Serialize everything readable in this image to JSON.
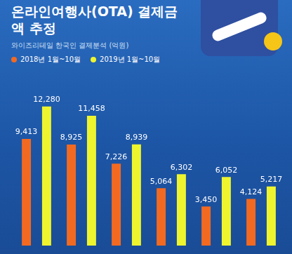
{
  "chart_data": {
    "type": "bar",
    "title": "온라인여행사(OTA) 결제금액 추정",
    "subtitle": "와이즈리테일 한국인 결제분석 (억원)",
    "categories": [
      null,
      null,
      null,
      null,
      null,
      null
    ],
    "series": [
      {
        "name": "2018년 1월~10월",
        "color": "#f26a21",
        "values": [
          9413,
          8925,
          7226,
          5064,
          3450,
          4124
        ],
        "value_labels": [
          "9,413",
          "8,925",
          "7,226",
          "5,064",
          "3,450",
          "4,124"
        ]
      },
      {
        "name": "2019년 1월~10월",
        "color": "#eef52e",
        "values": [
          12280,
          11458,
          8939,
          6302,
          6052,
          5217
        ],
        "value_labels": [
          "12,280",
          "11,458",
          "8,939",
          "6,302",
          "6,052",
          "5,217"
        ]
      }
    ],
    "ylim": [
      0,
      13500
    ],
    "grid": false,
    "legend": "top-left",
    "data_labels": true,
    "tick_labels": false
  }
}
